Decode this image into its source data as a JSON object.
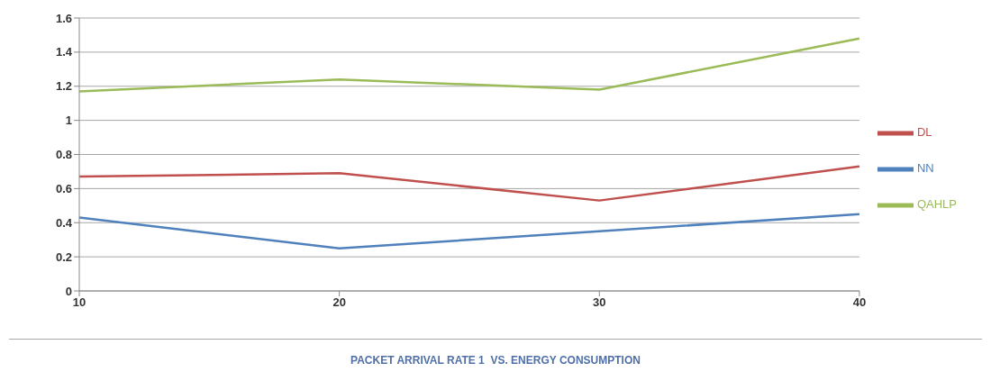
{
  "chart_data": {
    "type": "line",
    "categories": [
      "10",
      "20",
      "30",
      "40"
    ],
    "series": [
      {
        "name": "QAHLP",
        "color": "#9bbb59",
        "values": [
          1.17,
          1.24,
          1.18,
          1.48
        ]
      },
      {
        "name": "DL",
        "color": "#c0504d",
        "values": [
          0.67,
          0.69,
          0.53,
          0.73
        ]
      },
      {
        "name": "NN",
        "color": "#4f81bd",
        "values": [
          0.43,
          0.25,
          0.35,
          0.45
        ]
      }
    ],
    "ylim": [
      0,
      1.6
    ],
    "yticks": [
      0,
      0.2,
      0.4,
      0.6,
      0.8,
      1,
      1.2,
      1.4,
      1.6
    ],
    "grid": "y",
    "legend": "right",
    "marker": "none",
    "line_style": "solid",
    "annotations": [
      "PACKET ARRIVAL RATE 1  VS. ENERGY CONSUMPTION"
    ]
  }
}
